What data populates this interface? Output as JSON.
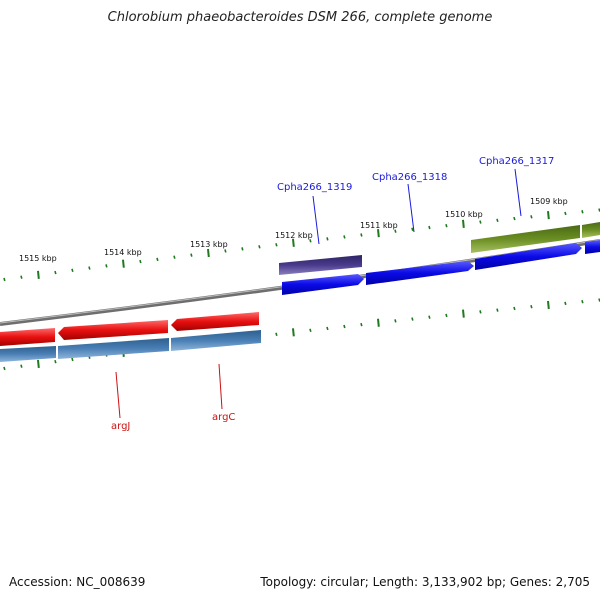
{
  "title": "Chlorobium phaeobacteroides DSM 266, complete genome",
  "footer": {
    "accession": "Accession: NC_008639",
    "summary": "Topology: circular; Length: 3,133,902 bp; Genes: 2,705"
  },
  "colors": {
    "backbone": "#7a7a7a",
    "tick": "#1f7a1f",
    "forward_cds": "#0a0ae6",
    "forward_gene_purple": "#4a3a8c",
    "forward_gene_olive": "#6b8e23",
    "reverse_cds": "#e01010",
    "reverse_gene": "#4a7fb5",
    "label_blue": "#1a1adb",
    "label_red": "#cc1111"
  },
  "ruler_labels": [
    "1515 kbp",
    "1514 kbp",
    "1513 kbp",
    "1512 kbp",
    "1511 kbp",
    "1510 kbp",
    "1509 kbp"
  ],
  "gene_labels": {
    "cpha1319": "Cpha266_1319",
    "cpha1318": "Cpha266_1318",
    "cpha1317": "Cpha266_1317",
    "argJ": "argJ",
    "argC": "argC"
  }
}
